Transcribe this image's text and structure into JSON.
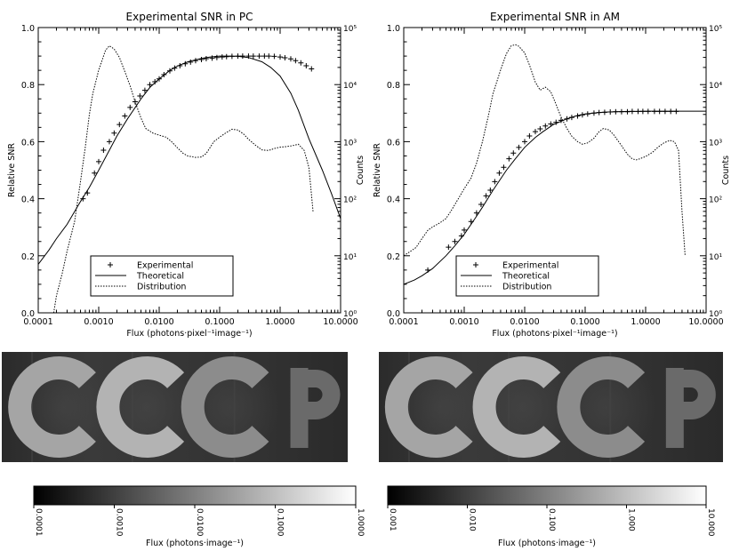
{
  "chart_data": [
    {
      "type": "line",
      "title": "Experimental SNR in PC",
      "xlabel": "Flux (photons·pixel⁻¹image⁻¹)",
      "ylabel": "Relative SNR",
      "y2label": "Counts",
      "xscale": "log",
      "xlim": [
        0.0001,
        10.0
      ],
      "ylim": [
        0.0,
        1.0
      ],
      "y2scale": "log",
      "y2lim": [
        1,
        100000
      ],
      "xticks": [
        "0.0001",
        "0.0010",
        "0.0100",
        "0.1000",
        "1.0000",
        "10.0000"
      ],
      "yticks": [
        "0.0",
        "0.2",
        "0.4",
        "0.6",
        "0.8",
        "1.0"
      ],
      "y2ticks": [
        "10⁰",
        "10¹",
        "10²",
        "10³",
        "10⁴",
        "10⁵"
      ],
      "legend": {
        "position": "bottom-center",
        "entries": [
          "Experimental",
          "Theoretical",
          "Distribution"
        ]
      },
      "series": [
        {
          "name": "Experimental",
          "style": "plus",
          "axis": "left",
          "x": [
            0.00055,
            0.00065,
            0.00085,
            0.001,
            0.0012,
            0.0015,
            0.0018,
            0.0022,
            0.0027,
            0.0033,
            0.004,
            0.0048,
            0.0058,
            0.007,
            0.0085,
            0.01,
            0.012,
            0.015,
            0.018,
            0.022,
            0.027,
            0.033,
            0.04,
            0.05,
            0.06,
            0.075,
            0.09,
            0.11,
            0.13,
            0.16,
            0.2,
            0.24,
            0.3,
            0.36,
            0.45,
            0.55,
            0.65,
            0.8,
            1.0,
            1.2,
            1.5,
            1.8,
            2.2,
            2.7,
            3.3
          ],
          "y": [
            0.4,
            0.42,
            0.49,
            0.53,
            0.57,
            0.6,
            0.63,
            0.66,
            0.69,
            0.72,
            0.74,
            0.76,
            0.78,
            0.8,
            0.81,
            0.82,
            0.835,
            0.848,
            0.858,
            0.866,
            0.873,
            0.879,
            0.884,
            0.888,
            0.891,
            0.893,
            0.895,
            0.897,
            0.898,
            0.899,
            0.9,
            0.9,
            0.9,
            0.9,
            0.9,
            0.9,
            0.9,
            0.899,
            0.897,
            0.894,
            0.89,
            0.884,
            0.876,
            0.866,
            0.855
          ]
        },
        {
          "name": "Theoretical",
          "style": "solid",
          "axis": "left",
          "x": [
            0.0001,
            0.00015,
            0.0002,
            0.0003,
            0.0005,
            0.0007,
            0.001,
            0.0015,
            0.002,
            0.003,
            0.005,
            0.007,
            0.01,
            0.015,
            0.02,
            0.03,
            0.05,
            0.07,
            0.1,
            0.15,
            0.2,
            0.3,
            0.5,
            0.7,
            1.0,
            1.5,
            2.0,
            3.0,
            5.0,
            7.0,
            10.0
          ],
          "y": [
            0.17,
            0.22,
            0.26,
            0.31,
            0.39,
            0.44,
            0.5,
            0.57,
            0.62,
            0.68,
            0.75,
            0.79,
            0.82,
            0.85,
            0.865,
            0.88,
            0.892,
            0.897,
            0.9,
            0.9,
            0.899,
            0.895,
            0.88,
            0.86,
            0.83,
            0.77,
            0.71,
            0.61,
            0.5,
            0.42,
            0.33
          ]
        },
        {
          "name": "Distribution",
          "style": "dotted",
          "axis": "right",
          "x": [
            0.00018,
            0.0002,
            0.00025,
            0.0003,
            0.0004,
            0.0005,
            0.0006,
            0.0007,
            0.0008,
            0.001,
            0.0013,
            0.0015,
            0.0018,
            0.0022,
            0.0027,
            0.0033,
            0.004,
            0.005,
            0.006,
            0.008,
            0.01,
            0.013,
            0.016,
            0.02,
            0.025,
            0.03,
            0.04,
            0.05,
            0.06,
            0.07,
            0.08,
            0.1,
            0.13,
            0.16,
            0.2,
            0.25,
            0.3,
            0.4,
            0.5,
            0.6,
            0.7,
            0.8,
            1.0,
            1.3,
            1.6,
            2.0,
            2.5,
            3.0,
            3.5
          ],
          "y": [
            1,
            2,
            5,
            12,
            40,
            200,
            800,
            3000,
            7000,
            18000,
            40000,
            48000,
            42000,
            30000,
            17000,
            9500,
            5000,
            2600,
            1700,
            1400,
            1300,
            1200,
            1000,
            780,
            620,
            560,
            530,
            540,
            620,
            800,
            1000,
            1200,
            1450,
            1650,
            1600,
            1350,
            1100,
            850,
            720,
            700,
            720,
            760,
            800,
            820,
            850,
            900,
            700,
            350,
            60
          ]
        }
      ]
    },
    {
      "type": "line",
      "title": "Experimental SNR in AM",
      "xlabel": "Flux (photons·pixel⁻¹image⁻¹)",
      "ylabel": "Relative SNR",
      "y2label": "Counts",
      "xscale": "log",
      "xlim": [
        0.0001,
        10.0
      ],
      "ylim": [
        0.0,
        1.0
      ],
      "y2scale": "log",
      "y2lim": [
        1,
        100000
      ],
      "xticks": [
        "0.0001",
        "0.0010",
        "0.0100",
        "0.1000",
        "1.0000",
        "10.0000"
      ],
      "yticks": [
        "0.0",
        "0.2",
        "0.4",
        "0.6",
        "0.8",
        "1.0"
      ],
      "y2ticks": [
        "10⁰",
        "10¹",
        "10²",
        "10³",
        "10⁴",
        "10⁵"
      ],
      "legend": {
        "position": "bottom-center",
        "entries": [
          "Experimental",
          "Theoretical",
          "Distribution"
        ]
      },
      "series": [
        {
          "name": "Experimental",
          "style": "plus",
          "axis": "left",
          "x": [
            0.00025,
            0.00055,
            0.0007,
            0.0009,
            0.001,
            0.0013,
            0.0016,
            0.0019,
            0.0023,
            0.0027,
            0.0032,
            0.0038,
            0.0045,
            0.0055,
            0.0065,
            0.008,
            0.01,
            0.012,
            0.015,
            0.018,
            0.022,
            0.027,
            0.033,
            0.04,
            0.05,
            0.06,
            0.075,
            0.09,
            0.11,
            0.14,
            0.17,
            0.21,
            0.26,
            0.32,
            0.4,
            0.5,
            0.6,
            0.75,
            0.9,
            1.1,
            1.4,
            1.7,
            2.1,
            2.6,
            3.2
          ],
          "y": [
            0.15,
            0.23,
            0.25,
            0.27,
            0.29,
            0.32,
            0.35,
            0.38,
            0.41,
            0.43,
            0.46,
            0.49,
            0.51,
            0.54,
            0.56,
            0.58,
            0.6,
            0.62,
            0.635,
            0.645,
            0.655,
            0.662,
            0.668,
            0.675,
            0.68,
            0.685,
            0.69,
            0.694,
            0.697,
            0.7,
            0.702,
            0.703,
            0.704,
            0.705,
            0.705,
            0.705,
            0.706,
            0.706,
            0.706,
            0.706,
            0.706,
            0.706,
            0.706,
            0.706,
            0.706
          ]
        },
        {
          "name": "Theoretical",
          "style": "solid",
          "axis": "left",
          "x": [
            0.0001,
            0.00015,
            0.0002,
            0.0003,
            0.0005,
            0.0007,
            0.001,
            0.0015,
            0.002,
            0.003,
            0.005,
            0.007,
            0.01,
            0.015,
            0.02,
            0.03,
            0.05,
            0.07,
            0.1,
            0.15,
            0.2,
            0.3,
            0.5,
            0.7,
            1.0,
            1.5,
            2.0,
            3.0,
            5.0,
            7.0,
            10.0
          ],
          "y": [
            0.1,
            0.115,
            0.13,
            0.155,
            0.2,
            0.235,
            0.275,
            0.33,
            0.37,
            0.43,
            0.5,
            0.54,
            0.58,
            0.615,
            0.635,
            0.66,
            0.68,
            0.69,
            0.697,
            0.701,
            0.703,
            0.705,
            0.706,
            0.706,
            0.707,
            0.707,
            0.707,
            0.707,
            0.707,
            0.707,
            0.707
          ]
        },
        {
          "name": "Distribution",
          "style": "dotted",
          "axis": "right",
          "x": [
            0.0001,
            0.00013,
            0.00016,
            0.0002,
            0.00025,
            0.0003,
            0.0004,
            0.0005,
            0.0006,
            0.0008,
            0.001,
            0.0013,
            0.0016,
            0.002,
            0.0025,
            0.003,
            0.004,
            0.005,
            0.006,
            0.007,
            0.008,
            0.01,
            0.012,
            0.015,
            0.018,
            0.022,
            0.027,
            0.033,
            0.04,
            0.05,
            0.06,
            0.075,
            0.09,
            0.11,
            0.14,
            0.17,
            0.2,
            0.25,
            0.3,
            0.4,
            0.5,
            0.6,
            0.7,
            0.8,
            1.0,
            1.3,
            1.6,
            2.0,
            2.5,
            3.0,
            3.5,
            4.0,
            4.5
          ],
          "y": [
            10,
            12,
            14,
            20,
            28,
            32,
            38,
            45,
            60,
            100,
            150,
            230,
            420,
            1000,
            2800,
            7000,
            18000,
            35000,
            48000,
            50000,
            47000,
            36000,
            22000,
            11000,
            8000,
            9000,
            7500,
            4500,
            2700,
            1700,
            1250,
            1000,
            900,
            950,
            1150,
            1500,
            1700,
            1600,
            1300,
            850,
            600,
            500,
            480,
            500,
            550,
            650,
            800,
            950,
            1050,
            1000,
            700,
            60,
            10
          ]
        }
      ]
    }
  ],
  "colorbars": [
    {
      "ticks": [
        "0.0001",
        "0.0010",
        "0.0100",
        "0.1000",
        "1.0000"
      ],
      "label": "Flux (photons·image⁻¹)"
    },
    {
      "ticks": [
        "0.001",
        "0.010",
        "0.100",
        "1.000",
        "10.000"
      ],
      "label": "Flux (photons·image⁻¹)"
    }
  ],
  "images": [
    {
      "letters": [
        "C",
        "C",
        "C",
        "P"
      ]
    },
    {
      "letters": [
        "C",
        "C",
        "C",
        "P"
      ]
    }
  ]
}
